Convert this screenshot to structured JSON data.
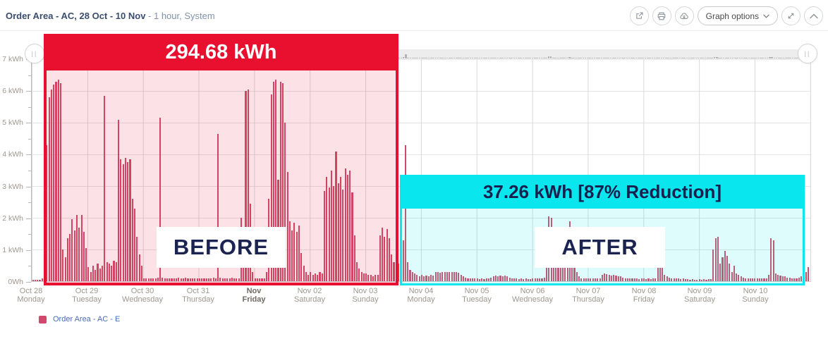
{
  "header": {
    "title_bold": "Order Area - AC, 28 Oct - 10 Nov",
    "title_suffix": " - 1 hour, System",
    "toolbar": {
      "graph_options_label": "Graph options",
      "icons": [
        "export-icon",
        "print-icon",
        "cloud-download-icon",
        "chevron-down-icon",
        "expand-icon",
        "collapse-icon"
      ]
    }
  },
  "scrollbar": {
    "handle_glyph": "||"
  },
  "annotations": {
    "before": {
      "total_label": "294.68 kWh",
      "band_label": "BEFORE",
      "color": "#e90f2f"
    },
    "after": {
      "total_label": "37.26 kWh [87% Reduction]",
      "band_label": "AFTER",
      "color": "#0ae6ee"
    }
  },
  "legend": {
    "label": "Order Area - AC - E",
    "swatch_color": "#d0496d"
  },
  "chart_data": {
    "type": "bar",
    "title": "Order Area - AC, 28 Oct - 10 Nov",
    "interval": "1 hour",
    "unit": "kWh",
    "ylim": [
      0,
      7
    ],
    "ylabel_ticks": [
      "7 kWh",
      "6 kWh",
      "5 kWh",
      "4 kWh",
      "3 kWh",
      "2 kWh",
      "1 kWh",
      "0Wh"
    ],
    "bar_color": "#d24a68",
    "series_name": "Order Area - AC - E",
    "before_total_kwh": 294.68,
    "after_total_kwh": 37.26,
    "reduction_pct": 87,
    "days": [
      {
        "date": "Oct 28",
        "weekday": "Monday",
        "bold": false,
        "hourly_kwh": [
          0.05,
          0.05,
          0.05,
          0.05,
          0.08,
          0.3,
          4.3,
          5.8,
          6.05,
          6.2,
          6.3,
          6.35,
          6.25,
          1.0,
          0.75,
          1.35,
          1.5,
          1.95,
          1.6,
          2.1,
          1.7,
          2.1,
          1.55,
          1.05
        ]
      },
      {
        "date": "Oct 29",
        "weekday": "Tuesday",
        "bold": false,
        "hourly_kwh": [
          0.45,
          0.3,
          0.5,
          0.35,
          0.55,
          0.4,
          0.5,
          5.85,
          0.6,
          0.55,
          0.5,
          0.65,
          0.6,
          5.1,
          3.85,
          3.7,
          3.9,
          3.75,
          3.85,
          2.6,
          2.3,
          1.4,
          0.85,
          0.5
        ]
      },
      {
        "date": "Oct 30",
        "weekday": "Wednesday",
        "bold": false,
        "hourly_kwh": [
          0.1,
          0.08,
          0.1,
          0.08,
          0.1,
          0.1,
          0.12,
          5.15,
          0.12,
          0.1,
          0.1,
          0.1,
          0.08,
          0.1,
          0.1,
          0.12,
          0.1,
          0.1,
          0.12,
          0.1,
          0.1,
          0.1,
          0.08,
          0.1
        ]
      },
      {
        "date": "Oct 31",
        "weekday": "Thursday",
        "bold": false,
        "hourly_kwh": [
          0.1,
          0.08,
          0.1,
          0.08,
          0.1,
          0.1,
          0.12,
          0.1,
          4.65,
          0.12,
          0.1,
          0.1,
          0.1,
          0.1,
          0.12,
          0.1,
          0.1,
          0.1,
          2.0,
          0.5,
          6.0,
          6.05,
          2.45,
          0.3
        ]
      },
      {
        "date": "Nov",
        "weekday": "Friday",
        "bold": true,
        "hourly_kwh": [
          0.1,
          0.1,
          0.1,
          0.1,
          0.1,
          0.3,
          2.6,
          5.9,
          6.3,
          6.35,
          3.2,
          6.3,
          6.25,
          5.0,
          3.45,
          1.9,
          1.6,
          1.85,
          1.55,
          1.75,
          0.9,
          0.5,
          0.3,
          0.2
        ]
      },
      {
        "date": "Nov 02",
        "weekday": "Saturday",
        "bold": false,
        "hourly_kwh": [
          0.3,
          0.2,
          0.25,
          0.2,
          0.3,
          0.25,
          2.85,
          3.3,
          2.95,
          3.5,
          3.0,
          4.1,
          3.1,
          3.3,
          2.9,
          3.55,
          3.35,
          3.5,
          2.8,
          1.45,
          0.6,
          0.4,
          0.3,
          0.25
        ]
      },
      {
        "date": "Nov 03",
        "weekday": "Sunday",
        "bold": false,
        "hourly_kwh": [
          0.25,
          0.2,
          0.2,
          0.15,
          0.2,
          0.2,
          1.45,
          1.7,
          1.4,
          1.65,
          1.35,
          0.85,
          0.6,
          0.45,
          0.55,
          0.9,
          1.3,
          4.3,
          0.6,
          0.35,
          0.3,
          0.25,
          0.2,
          0.15
        ]
      },
      {
        "date": "Nov 04",
        "weekday": "Monday",
        "bold": false,
        "hourly_kwh": [
          0.2,
          0.15,
          0.18,
          0.15,
          0.2,
          0.18,
          0.28,
          0.3,
          0.27,
          0.3,
          0.28,
          0.3,
          0.29,
          0.3,
          0.28,
          0.3,
          0.27,
          0.2,
          0.15,
          0.12,
          0.1,
          0.1,
          0.08,
          0.08
        ]
      },
      {
        "date": "Nov 05",
        "weekday": "Tuesday",
        "bold": false,
        "hourly_kwh": [
          0.08,
          0.06,
          0.08,
          0.07,
          0.08,
          0.08,
          0.12,
          0.15,
          0.18,
          0.15,
          0.17,
          0.15,
          0.18,
          0.15,
          0.12,
          0.1,
          0.08,
          0.08,
          0.06,
          0.08,
          0.06,
          0.08,
          0.06,
          0.06
        ]
      },
      {
        "date": "Nov 06",
        "weekday": "Wednesday",
        "bold": false,
        "hourly_kwh": [
          0.1,
          0.08,
          0.1,
          0.09,
          0.1,
          0.12,
          0.45,
          2.05,
          2.0,
          0.85,
          0.7,
          0.9,
          0.75,
          0.85,
          0.7,
          0.6,
          1.9,
          0.8,
          0.5,
          0.3,
          0.15,
          0.1,
          0.1,
          0.08
        ]
      },
      {
        "date": "Nov 07",
        "weekday": "Thursday",
        "bold": false,
        "hourly_kwh": [
          0.1,
          0.08,
          0.1,
          0.08,
          0.1,
          0.1,
          0.2,
          0.25,
          0.22,
          0.2,
          0.18,
          0.2,
          0.18,
          0.15,
          0.15,
          0.12,
          0.1,
          0.1,
          0.08,
          0.1,
          0.08,
          0.08,
          0.06,
          0.08
        ]
      },
      {
        "date": "Nov 08",
        "weekday": "Friday",
        "bold": false,
        "hourly_kwh": [
          0.08,
          0.06,
          0.08,
          0.06,
          0.08,
          0.08,
          0.45,
          0.85,
          0.5,
          0.2,
          0.15,
          0.12,
          0.1,
          0.1,
          0.08,
          0.08,
          0.06,
          0.08,
          0.06,
          0.06,
          0.05,
          0.06,
          0.05,
          0.05
        ]
      },
      {
        "date": "Nov 09",
        "weekday": "Saturday",
        "bold": false,
        "hourly_kwh": [
          0.06,
          0.05,
          0.06,
          0.05,
          0.06,
          0.06,
          1.0,
          1.35,
          1.4,
          0.55,
          0.75,
          0.95,
          0.8,
          0.55,
          0.3,
          0.5,
          0.25,
          0.2,
          0.15,
          0.12,
          0.1,
          0.1,
          0.08,
          0.08
        ]
      },
      {
        "date": "Nov 10",
        "weekday": "Sunday",
        "bold": false,
        "hourly_kwh": [
          0.1,
          0.08,
          0.1,
          0.08,
          0.1,
          0.1,
          0.2,
          1.35,
          1.3,
          0.25,
          0.2,
          0.18,
          0.15,
          0.15,
          0.12,
          0.12,
          0.1,
          0.1,
          0.1,
          0.12,
          0.15,
          0.2,
          0.3,
          0.45
        ]
      }
    ]
  }
}
